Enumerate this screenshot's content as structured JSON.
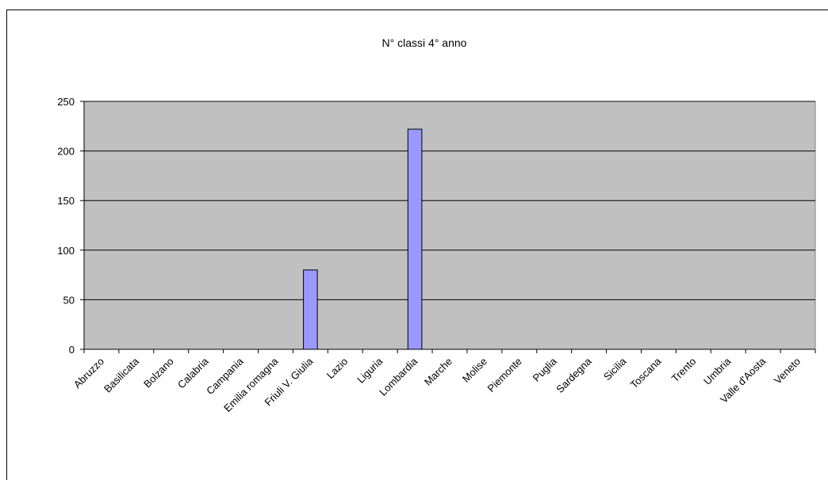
{
  "chart_data": {
    "type": "bar",
    "title": "N° classi 4° anno",
    "categories": [
      "Abruzzo",
      "Basilicata",
      "Bolzano",
      "Calabria",
      "Campania",
      "Emilia romagna",
      "Friuli V. Giulia",
      "Lazio",
      "Liguria",
      "Lombardia",
      "Marche",
      "Molise",
      "Piemonte",
      "Puglia",
      "Sardegna",
      "Sicilia",
      "Toscana",
      "Trento",
      "Umbria",
      "Valle d'Aosta",
      "Veneto"
    ],
    "values": [
      0,
      0,
      0,
      0,
      0,
      0,
      80,
      0,
      0,
      222,
      0,
      0,
      0,
      0,
      0,
      0,
      0,
      0,
      0,
      0,
      0
    ],
    "ylim": [
      0,
      250
    ],
    "yticks": [
      0,
      50,
      100,
      150,
      200,
      250
    ],
    "xlabel": "",
    "ylabel": "",
    "grid": true,
    "legend": "none",
    "colors": {
      "plot_background": "#c0c0c0",
      "bar_fill": "#9999ff",
      "bar_stroke": "#000000",
      "gridline": "#000000"
    }
  }
}
